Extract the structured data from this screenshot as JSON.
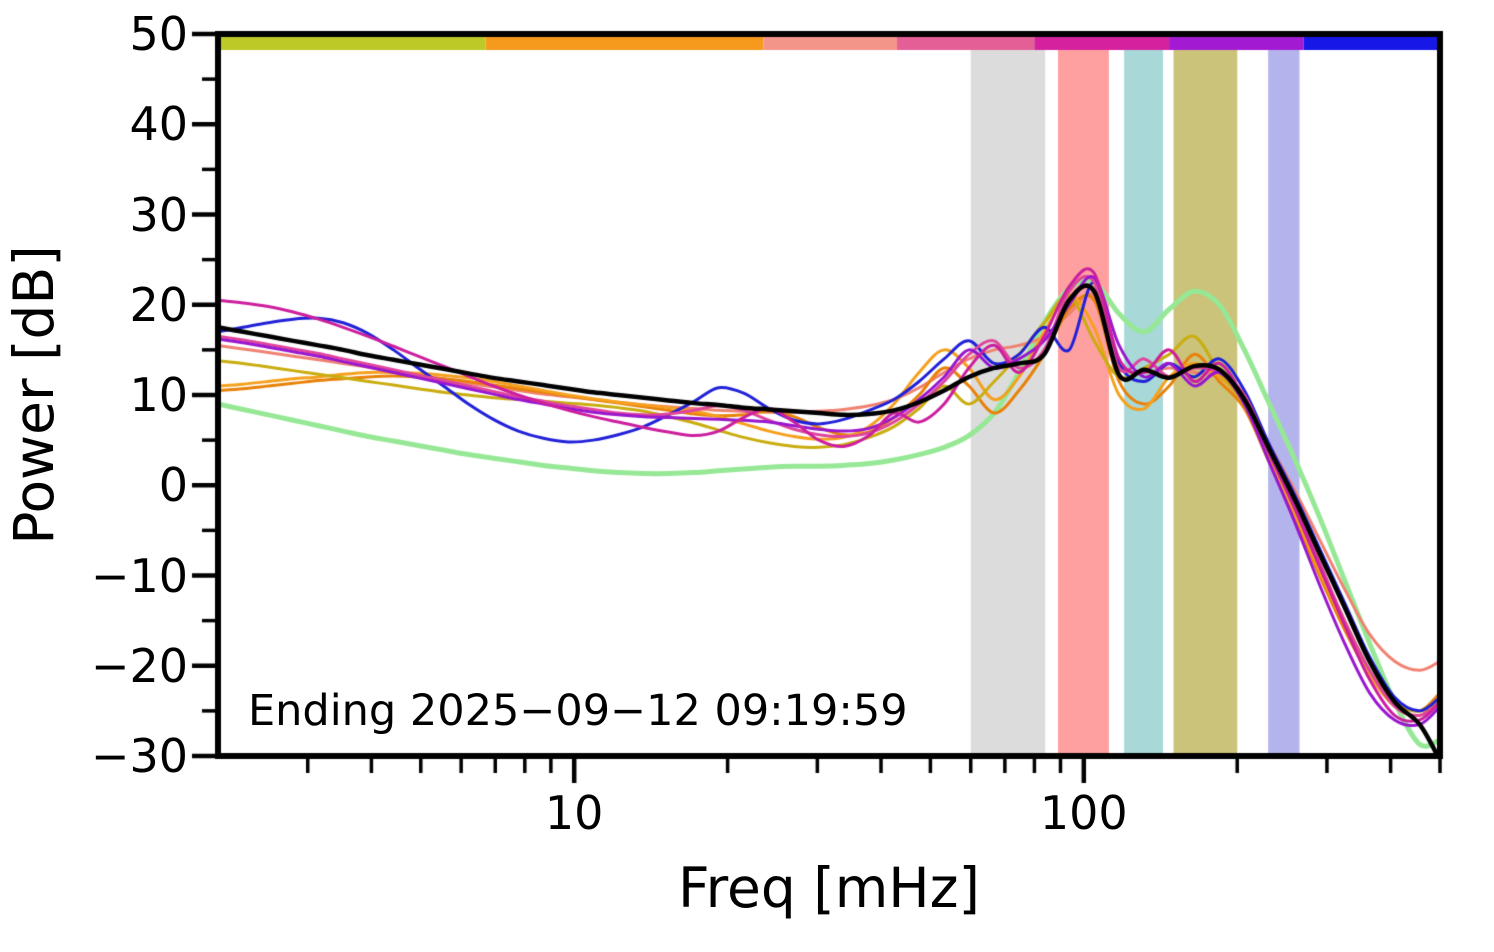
{
  "chart_data": {
    "type": "line",
    "title": "",
    "xlabel": "Freq [mHz]",
    "ylabel": "Power [dB]",
    "annotation": "Ending 2025−09−12 09:19:59",
    "xscale": "log",
    "grid": false,
    "legend": "none",
    "xlim": [
      2,
      500
    ],
    "ylim": [
      -30,
      50
    ],
    "x_ticks": {
      "major": [
        10,
        100
      ],
      "labels": [
        "10",
        "100"
      ],
      "minor": [
        3,
        4,
        5,
        6,
        7,
        8,
        9,
        20,
        30,
        40,
        50,
        60,
        70,
        80,
        90,
        200,
        300,
        400,
        500
      ]
    },
    "y_ticks": {
      "major": [
        50,
        40,
        30,
        20,
        10,
        0,
        -10,
        -20,
        -30
      ],
      "labels": [
        "50",
        "40",
        "30",
        "20",
        "10",
        "0",
        "−10",
        "−20",
        "−30"
      ],
      "minor": [
        45,
        35,
        25,
        15,
        5,
        -5,
        -15,
        -25
      ]
    },
    "bands": [
      {
        "name": "band-gray",
        "from": 60,
        "to": 84,
        "color": "#dcdcdc"
      },
      {
        "name": "band-red",
        "from": 89,
        "to": 112,
        "color": "#ffa0a0"
      },
      {
        "name": "band-teal",
        "from": 120,
        "to": 143,
        "color": "#a8d8d8"
      },
      {
        "name": "band-olive",
        "from": 150,
        "to": 200,
        "color": "#cbc379"
      },
      {
        "name": "band-lavender",
        "from": 230,
        "to": 265,
        "color": "#b4b4ec"
      }
    ],
    "top_bar": {
      "segments": [
        {
          "from": 2,
          "to": 6.7,
          "color": "#bcc926"
        },
        {
          "from": 6.7,
          "to": 23.5,
          "color": "#f59a1c"
        },
        {
          "from": 23.5,
          "to": 43,
          "color": "#f4958a"
        },
        {
          "from": 43,
          "to": 80,
          "color": "#e35f96"
        },
        {
          "from": 80,
          "to": 147,
          "color": "#d6219e"
        },
        {
          "from": 147,
          "to": 270,
          "color": "#a21ad2"
        },
        {
          "from": 270,
          "to": 500,
          "color": "#1717e8"
        }
      ]
    },
    "x": [
      2.0,
      2.24,
      2.51,
      2.81,
      3.15,
      3.52,
      3.94,
      4.42,
      4.94,
      5.54,
      6.2,
      6.94,
      7.77,
      8.7,
      9.74,
      10.9,
      12.2,
      13.7,
      15.3,
      17.2,
      19.2,
      21.5,
      24.1,
      27.0,
      30.2,
      33.8,
      37.9,
      42.4,
      47.5,
      53.2,
      59.5,
      66.7,
      74.6,
      83.6,
      93.6,
      104.8,
      117.3,
      131.4,
      147.1,
      164.7,
      184.5,
      206.6,
      231.3,
      259.0,
      290.0,
      324.8,
      363.7,
      407.3,
      456.0,
      500.0
    ],
    "series": [
      {
        "name": "series-light-green",
        "color": "#96e896",
        "width": 5,
        "values": [
          9.0,
          8.4,
          7.8,
          7.2,
          6.6,
          6.0,
          5.4,
          4.9,
          4.4,
          3.9,
          3.4,
          3.0,
          2.6,
          2.2,
          1.9,
          1.6,
          1.4,
          1.3,
          1.3,
          1.4,
          1.6,
          1.8,
          2.0,
          2.1,
          2.1,
          2.2,
          2.4,
          2.8,
          3.4,
          4.2,
          5.5,
          8.0,
          12.5,
          18.0,
          21.8,
          22.5,
          19.0,
          17.0,
          19.5,
          21.5,
          20.0,
          15.0,
          9.0,
          3.0,
          -3.5,
          -10.5,
          -17.5,
          -24.0,
          -28.7,
          -28.2
        ]
      },
      {
        "name": "series-salmon",
        "color": "#f08272",
        "width": 3,
        "values": [
          15.5,
          15.1,
          14.7,
          14.3,
          13.9,
          13.5,
          13.1,
          12.6,
          12.2,
          11.8,
          11.3,
          10.9,
          10.5,
          10.1,
          9.8,
          9.5,
          9.2,
          8.9,
          8.7,
          8.5,
          8.3,
          8.2,
          8.1,
          8.1,
          8.2,
          8.4,
          8.8,
          9.5,
          10.8,
          12.5,
          14.0,
          15.0,
          15.5,
          16.5,
          19.0,
          21.0,
          13.5,
          12.5,
          13.0,
          12.5,
          12.0,
          9.5,
          4.5,
          -0.5,
          -6.0,
          -11.5,
          -16.5,
          -19.5,
          -20.5,
          -19.5
        ]
      },
      {
        "name": "series-dark-orange",
        "color": "#e8820a",
        "width": 3,
        "values": [
          10.5,
          10.7,
          11.0,
          11.3,
          11.6,
          11.8,
          12.0,
          12.1,
          12.0,
          11.8,
          11.5,
          11.1,
          10.7,
          10.3,
          9.9,
          9.5,
          9.1,
          8.7,
          8.3,
          7.9,
          7.7,
          7.8,
          8.2,
          7.6,
          6.4,
          5.6,
          5.9,
          7.5,
          10.0,
          13.0,
          11.0,
          8.0,
          10.5,
          14.5,
          19.5,
          20.5,
          11.5,
          9.0,
          11.0,
          14.5,
          11.5,
          8.5,
          2.5,
          -3.5,
          -10.0,
          -16.0,
          -21.0,
          -24.0,
          -25.0,
          -23.0
        ]
      },
      {
        "name": "series-orange",
        "color": "#f5a01e",
        "width": 3,
        "values": [
          11.0,
          11.2,
          11.5,
          11.8,
          12.0,
          12.3,
          12.5,
          12.5,
          12.4,
          12.2,
          11.9,
          11.5,
          11.0,
          10.5,
          10.0,
          9.6,
          9.2,
          8.9,
          8.6,
          8.2,
          7.6,
          6.8,
          6.0,
          5.4,
          5.1,
          5.3,
          6.5,
          9.0,
          12.5,
          15.0,
          13.0,
          9.5,
          12.0,
          17.0,
          21.0,
          17.5,
          10.0,
          8.5,
          12.0,
          13.5,
          12.0,
          9.0,
          3.0,
          -3.0,
          -9.5,
          -15.5,
          -21.0,
          -24.5,
          -25.5,
          -23.5
        ]
      },
      {
        "name": "series-olive",
        "color": "#c9ad10",
        "width": 3,
        "values": [
          13.8,
          13.5,
          13.1,
          12.7,
          12.3,
          11.9,
          11.5,
          11.1,
          10.7,
          10.3,
          10.0,
          9.7,
          9.5,
          9.3,
          9.1,
          8.9,
          8.6,
          8.2,
          7.6,
          6.9,
          6.1,
          5.3,
          4.7,
          4.3,
          4.2,
          4.5,
          5.3,
          6.5,
          8.5,
          11.0,
          9.0,
          11.5,
          14.5,
          18.0,
          21.0,
          16.0,
          12.0,
          13.0,
          14.5,
          16.5,
          12.5,
          9.0,
          3.5,
          -2.5,
          -9.0,
          -15.0,
          -20.5,
          -24.0,
          -25.0,
          -23.5
        ]
      },
      {
        "name": "series-blue",
        "color": "#2121d8",
        "width": 3,
        "values": [
          17.0,
          17.5,
          18.0,
          18.4,
          18.5,
          18.0,
          16.8,
          15.0,
          13.0,
          11.0,
          9.0,
          7.3,
          6.0,
          5.2,
          4.8,
          5.0,
          5.6,
          6.5,
          7.8,
          9.3,
          10.8,
          10.2,
          8.5,
          7.2,
          6.8,
          7.3,
          8.3,
          9.5,
          11.5,
          14.0,
          16.0,
          13.5,
          14.5,
          17.5,
          15.0,
          22.5,
          13.5,
          11.5,
          13.5,
          12.0,
          14.0,
          10.5,
          4.5,
          -1.0,
          -7.0,
          -13.0,
          -19.0,
          -23.5,
          -25.0,
          -23.5
        ]
      },
      {
        "name": "series-pink",
        "color": "#e0459c",
        "width": 3,
        "values": [
          16.5,
          16.1,
          15.6,
          15.1,
          14.6,
          14.0,
          13.4,
          12.8,
          12.2,
          11.6,
          11.0,
          10.4,
          9.8,
          9.3,
          8.8,
          8.4,
          8.0,
          7.8,
          7.9,
          8.3,
          8.8,
          8.3,
          7.2,
          6.2,
          5.6,
          5.4,
          5.8,
          7.0,
          9.0,
          11.5,
          14.5,
          16.0,
          13.0,
          15.0,
          21.5,
          22.5,
          13.0,
          14.0,
          12.0,
          13.0,
          12.5,
          10.0,
          4.0,
          -2.0,
          -8.5,
          -15.0,
          -20.5,
          -24.5,
          -25.5,
          -24.0
        ]
      },
      {
        "name": "series-purple",
        "color": "#9917cf",
        "width": 3,
        "values": [
          16.2,
          15.8,
          15.3,
          14.8,
          14.3,
          13.7,
          13.1,
          12.5,
          11.9,
          11.3,
          10.7,
          10.1,
          9.5,
          9.0,
          8.5,
          8.1,
          7.8,
          7.6,
          7.5,
          7.4,
          7.3,
          7.2,
          7.0,
          6.6,
          6.2,
          6.0,
          6.3,
          7.5,
          9.5,
          12.0,
          15.0,
          13.0,
          14.0,
          16.0,
          20.0,
          23.0,
          15.5,
          12.0,
          13.5,
          11.0,
          12.5,
          9.0,
          2.5,
          -4.0,
          -11.0,
          -17.5,
          -23.0,
          -26.0,
          -26.5,
          -24.5
        ]
      },
      {
        "name": "series-magenta",
        "color": "#cc1f9e",
        "width": 3,
        "values": [
          20.5,
          20.2,
          19.8,
          19.2,
          18.4,
          17.5,
          16.5,
          15.4,
          14.3,
          13.2,
          12.1,
          11.0,
          10.0,
          9.1,
          8.3,
          7.6,
          7.0,
          6.4,
          5.9,
          5.5,
          6.0,
          7.5,
          8.5,
          7.0,
          5.0,
          4.3,
          5.5,
          8.0,
          7.0,
          9.0,
          13.0,
          15.5,
          12.5,
          16.5,
          22.0,
          23.5,
          14.0,
          12.5,
          15.0,
          11.5,
          13.5,
          9.5,
          3.5,
          -2.5,
          -9.0,
          -15.5,
          -21.5,
          -25.5,
          -26.0,
          -24.0
        ]
      },
      {
        "name": "series-mean-black",
        "color": "#000000",
        "width": 4.5,
        "values": [
          17.5,
          17.0,
          16.5,
          16.0,
          15.5,
          15.0,
          14.4,
          13.9,
          13.4,
          12.9,
          12.4,
          11.9,
          11.5,
          11.1,
          10.7,
          10.3,
          10.0,
          9.7,
          9.4,
          9.1,
          8.9,
          8.6,
          8.4,
          8.2,
          8.0,
          7.8,
          7.9,
          8.3,
          9.2,
          10.5,
          12.0,
          13.0,
          13.5,
          14.5,
          20.5,
          21.5,
          12.2,
          12.8,
          11.9,
          13.2,
          12.8,
          9.5,
          4.0,
          -1.5,
          -7.5,
          -13.5,
          -19.5,
          -24.0,
          -26.5,
          -30.5
        ]
      }
    ]
  }
}
